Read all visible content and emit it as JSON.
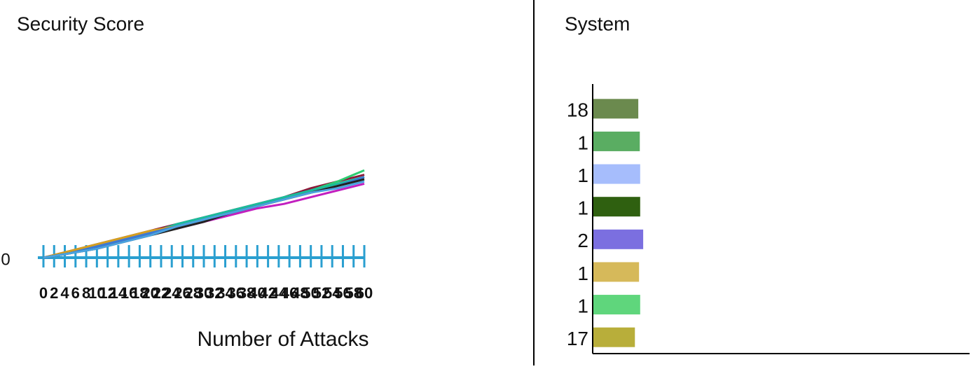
{
  "charts": [
    {
      "type": "line",
      "title": "Security Score",
      "x_label": "Number of Attacks",
      "x": [
        0,
        5,
        10,
        15,
        20,
        25,
        30,
        35,
        40,
        45,
        50,
        55,
        60
      ],
      "xlim": [
        0,
        60
      ],
      "xticks": [
        0,
        2,
        4,
        6,
        8,
        10,
        12,
        14,
        16,
        18,
        20,
        22,
        24,
        26,
        28,
        30,
        32,
        34,
        36,
        38,
        40,
        42,
        44,
        46,
        48,
        50,
        52,
        54,
        56,
        58,
        60
      ],
      "tick_color": "#2a9fd0",
      "ylim": [
        -10,
        90
      ],
      "yticks": [
        0
      ],
      "series": [
        {
          "color": "#8b1a3a",
          "values": [
            0,
            3,
            6,
            9,
            12,
            15,
            18,
            21,
            24,
            27,
            31,
            34,
            37
          ]
        },
        {
          "color": "#2ecc71",
          "values": [
            0,
            2,
            5,
            8,
            11,
            14,
            17,
            20,
            23,
            27,
            30,
            34,
            39
          ]
        },
        {
          "color": "#1abc9c",
          "values": [
            0,
            2,
            5,
            8,
            11,
            15,
            18,
            21,
            24,
            27,
            30,
            33,
            36
          ]
        },
        {
          "color": "#c21fbf",
          "values": [
            0,
            2,
            5,
            8,
            11,
            13,
            16,
            19,
            22,
            24,
            27,
            30,
            33
          ]
        },
        {
          "color": "#d4a020",
          "values": [
            0,
            3,
            6,
            9,
            12,
            14,
            17,
            20,
            23,
            26,
            29,
            32,
            35
          ]
        },
        {
          "color": "#3a7bd5",
          "values": [
            0,
            2,
            5,
            8,
            11,
            14,
            17,
            20,
            23,
            26,
            29,
            32,
            36
          ]
        },
        {
          "color": "#222222",
          "values": [
            0,
            2,
            4,
            7,
            10,
            13,
            16,
            20,
            23,
            26,
            29,
            32,
            35
          ]
        },
        {
          "color": "#4aa3e0",
          "values": [
            0,
            2,
            4,
            7,
            10,
            14,
            17,
            20,
            23,
            26,
            29,
            31,
            34
          ]
        }
      ]
    },
    {
      "type": "hbar",
      "title": "System",
      "categories": [
        "18",
        "1",
        "1",
        "1",
        "2",
        "1",
        "1",
        "17"
      ],
      "values": [
        12.1,
        12.5,
        12.6,
        12.6,
        13.4,
        12.3,
        12.6,
        11.2
      ],
      "colors": [
        "#6b8a4e",
        "#5aad62",
        "#a6bdfc",
        "#2f6010",
        "#7b6fe0",
        "#d6b95a",
        "#5fd67c",
        "#b8ae3a"
      ],
      "xlim": [
        0,
        100
      ]
    }
  ]
}
